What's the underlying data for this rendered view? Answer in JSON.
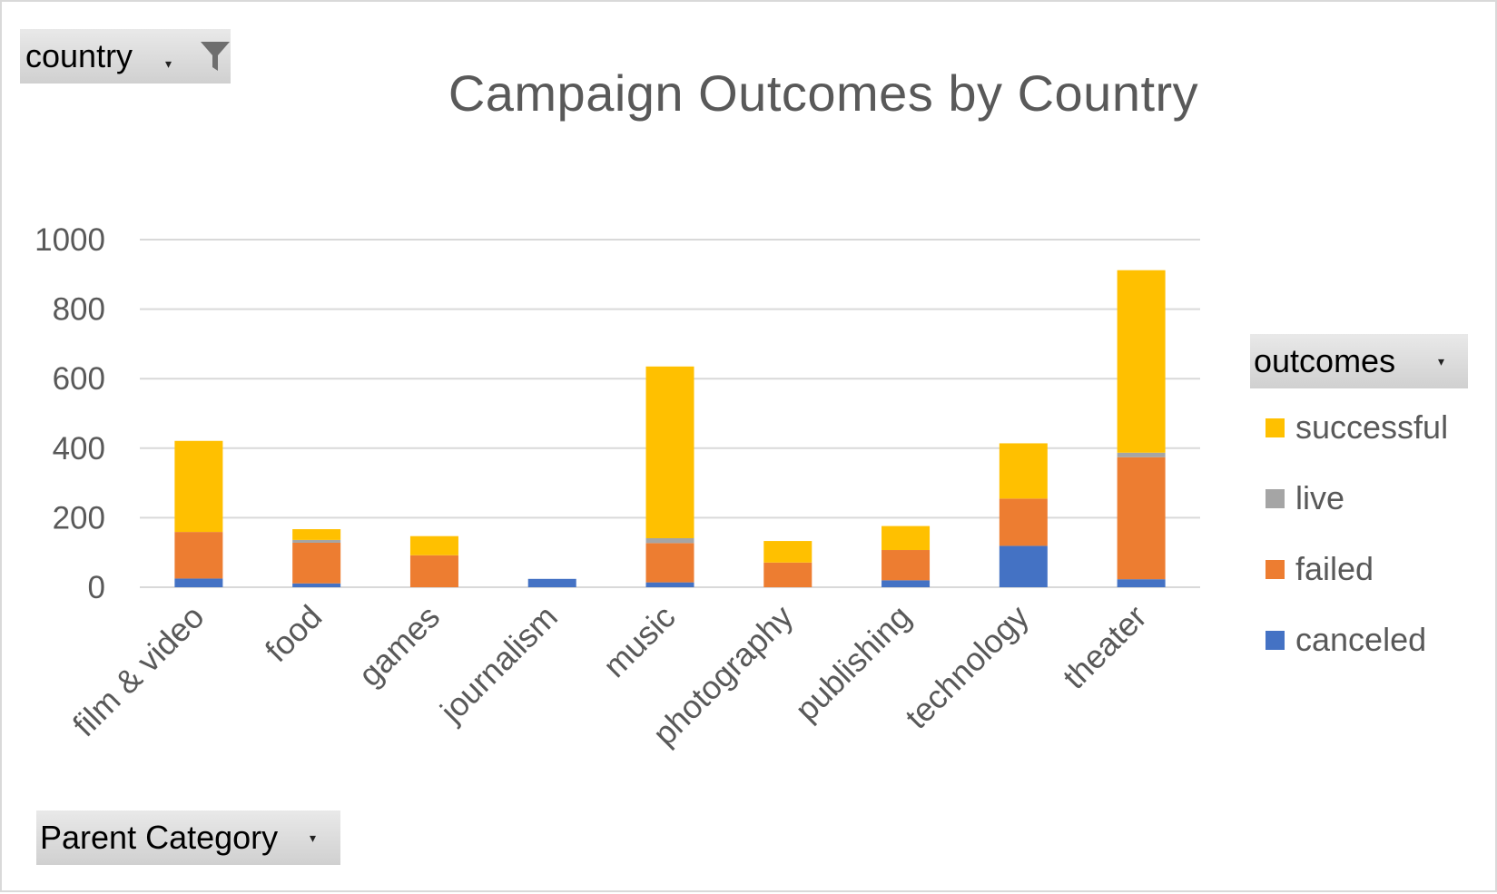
{
  "filters": {
    "country": {
      "label": "country"
    },
    "outcomes": {
      "label": "outcomes"
    },
    "parent_category": {
      "label": "Parent Category"
    }
  },
  "icons": {
    "country_filter": "funnel-filter-icon",
    "dropdown": "chevron-down-icon"
  },
  "colors": {
    "canceled": "#4472c4",
    "failed": "#ed7d31",
    "live": "#a5a5a5",
    "successful": "#ffc000",
    "gridline": "#d9d9d9",
    "axis_text": "#595959"
  },
  "chart_data": {
    "type": "bar",
    "stacked": true,
    "title": "Campaign Outcomes by Country",
    "xlabel": "",
    "ylabel": "",
    "ylim": [
      0,
      1000
    ],
    "yticks": [
      0,
      200,
      400,
      600,
      800,
      1000
    ],
    "grid": true,
    "legend_position": "right",
    "categories": [
      "film & video",
      "food",
      "games",
      "journalism",
      "music",
      "photography",
      "publishing",
      "technology",
      "theater"
    ],
    "series": [
      {
        "name": "canceled",
        "values": [
          25,
          11,
          0,
          24,
          14,
          0,
          20,
          119,
          23
        ]
      },
      {
        "name": "failed",
        "values": [
          134,
          117,
          92,
          0,
          113,
          71,
          87,
          136,
          351
        ]
      },
      {
        "name": "live",
        "values": [
          0,
          8,
          0,
          0,
          14,
          0,
          0,
          0,
          13
        ]
      },
      {
        "name": "successful",
        "values": [
          262,
          31,
          55,
          0,
          494,
          62,
          69,
          159,
          525
        ]
      }
    ]
  }
}
